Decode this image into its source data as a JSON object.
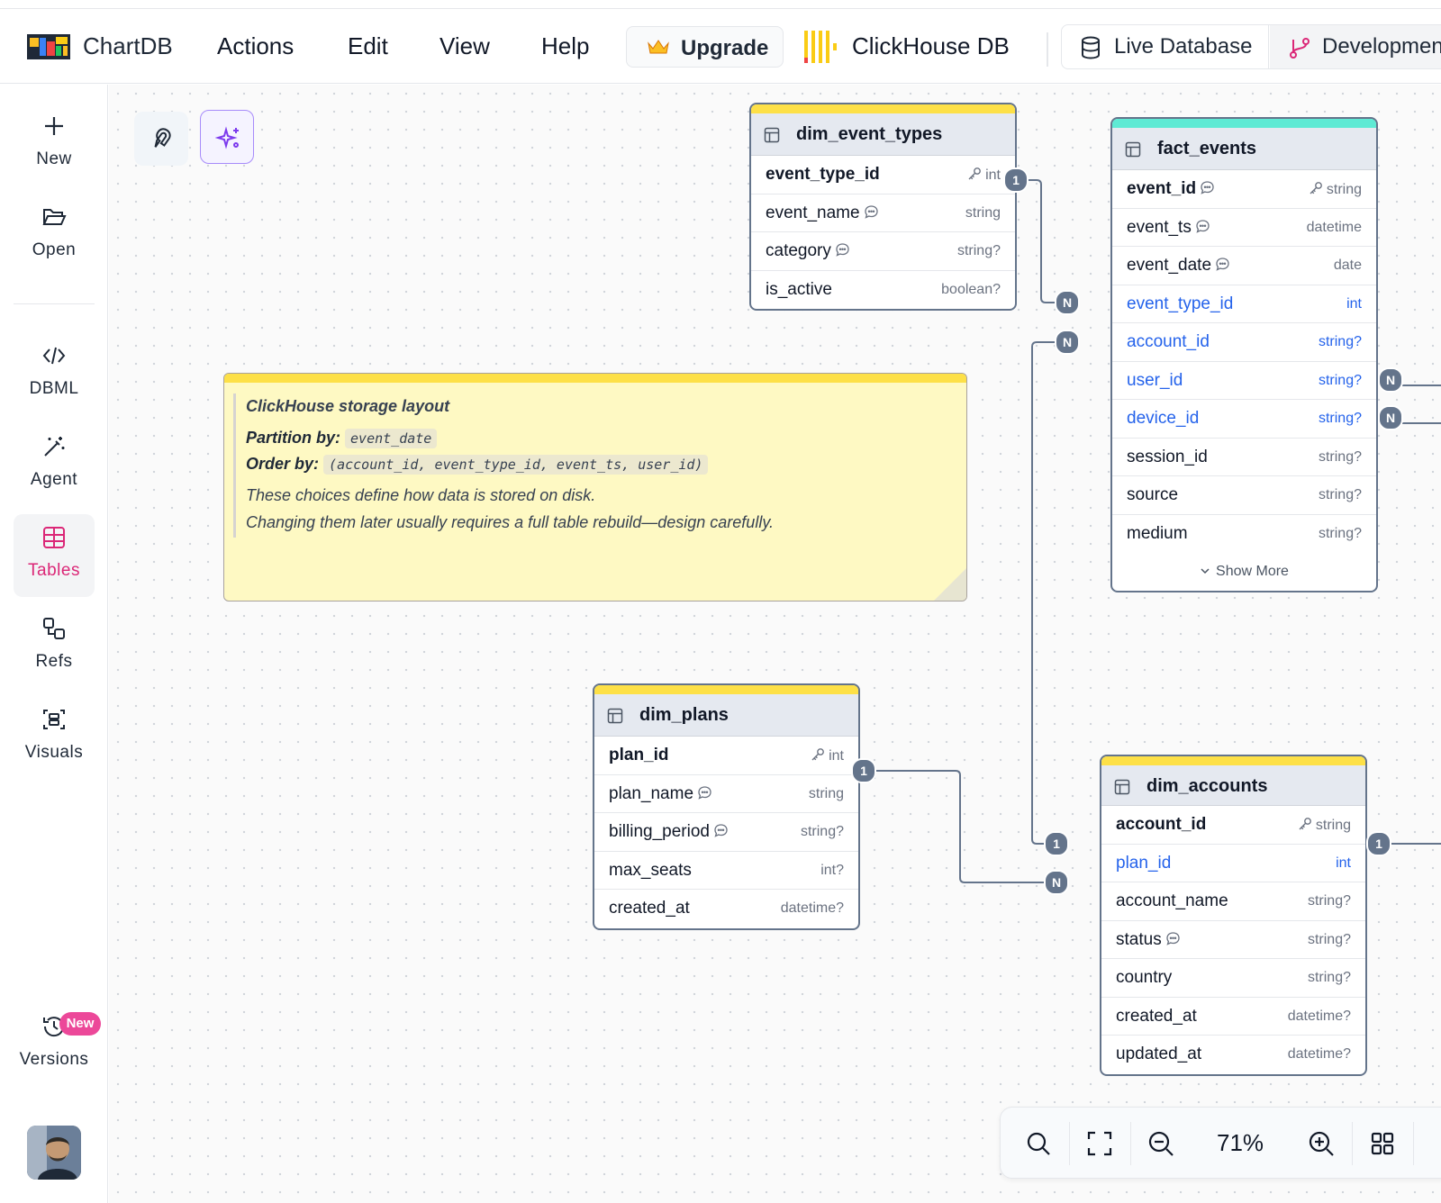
{
  "topbar": {
    "brand": "ChartDB",
    "menu": [
      "Actions",
      "Edit",
      "View",
      "Help"
    ],
    "upgrade_label": "Upgrade",
    "db_name": "ClickHouse DB",
    "live_label": "Live Database",
    "dev_label": "Development"
  },
  "sidebar": {
    "new": "New",
    "open": "Open",
    "dbml": "DBML",
    "agent": "Agent",
    "tables": "Tables",
    "refs": "Refs",
    "visuals": "Visuals",
    "versions": "Versions",
    "versions_badge": "New",
    "active": "Tables"
  },
  "tables": {
    "dim_event_types": {
      "name": "dim_event_types",
      "color": "#fde047",
      "columns": [
        {
          "name": "event_type_id",
          "type": "int",
          "pk": true
        },
        {
          "name": "event_name",
          "type": "string",
          "comment": true
        },
        {
          "name": "category",
          "type": "string?",
          "comment": true
        },
        {
          "name": "is_active",
          "type": "boolean?"
        }
      ]
    },
    "fact_events": {
      "name": "fact_events",
      "color": "#5eead4",
      "columns": [
        {
          "name": "event_id",
          "type": "string",
          "pk": true,
          "comment": true
        },
        {
          "name": "event_ts",
          "type": "datetime",
          "comment": true
        },
        {
          "name": "event_date",
          "type": "date",
          "comment": true
        },
        {
          "name": "event_type_id",
          "type": "int",
          "fk": true
        },
        {
          "name": "account_id",
          "type": "string?",
          "fk": true
        },
        {
          "name": "user_id",
          "type": "string?",
          "fk": true
        },
        {
          "name": "device_id",
          "type": "string?",
          "fk": true
        },
        {
          "name": "session_id",
          "type": "string?"
        },
        {
          "name": "source",
          "type": "string?"
        },
        {
          "name": "medium",
          "type": "string?"
        }
      ],
      "show_more": "Show More"
    },
    "dim_plans": {
      "name": "dim_plans",
      "color": "#fde047",
      "columns": [
        {
          "name": "plan_id",
          "type": "int",
          "pk": true
        },
        {
          "name": "plan_name",
          "type": "string",
          "comment": true
        },
        {
          "name": "billing_period",
          "type": "string?",
          "comment": true
        },
        {
          "name": "max_seats",
          "type": "int?"
        },
        {
          "name": "created_at",
          "type": "datetime?"
        }
      ]
    },
    "dim_accounts": {
      "name": "dim_accounts",
      "color": "#fde047",
      "columns": [
        {
          "name": "account_id",
          "type": "string",
          "pk": true
        },
        {
          "name": "plan_id",
          "type": "int",
          "fk": true
        },
        {
          "name": "account_name",
          "type": "string?"
        },
        {
          "name": "status",
          "type": "string?",
          "comment": true
        },
        {
          "name": "country",
          "type": "string?"
        },
        {
          "name": "created_at",
          "type": "datetime?"
        },
        {
          "name": "updated_at",
          "type": "datetime?"
        }
      ]
    }
  },
  "note": {
    "title": "ClickHouse storage layout",
    "partition_label": "Partition by:",
    "partition_value": "event_date",
    "order_label": "Order by:",
    "order_value": "(account_id, event_type_id, event_ts, user_id)",
    "line1": "These choices define how data is stored on disk.",
    "line2": "Changing them later usually requires a full table rebuild—design carefully."
  },
  "relationship_labels": {
    "one": "1",
    "many": "N"
  },
  "zoom": {
    "level": "71%"
  },
  "colors": {
    "accent_pink": "#db2777",
    "fk_blue": "#2563eb",
    "edge": "#64748b"
  }
}
